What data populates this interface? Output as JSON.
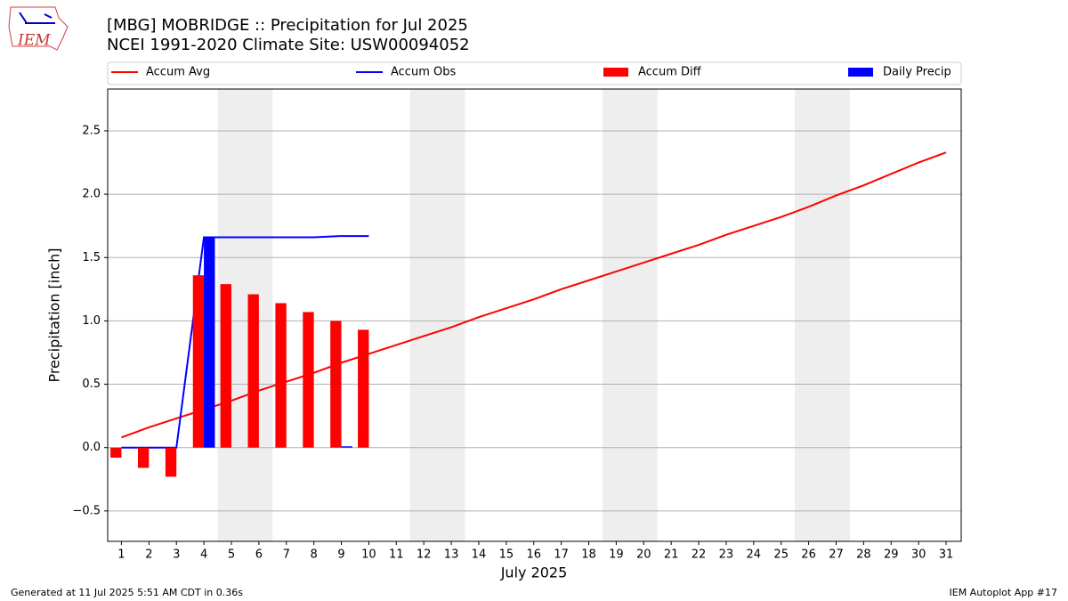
{
  "chart_data": {
    "type": "combo",
    "title": "[MBG] MOBRIDGE :: Precipitation for Jul 2025",
    "subtitle": "NCEI 1991-2020 Climate Site: USW00094052",
    "xlabel": "July 2025",
    "ylabel": "Precipitation [inch]",
    "x": [
      1,
      2,
      3,
      4,
      5,
      6,
      7,
      8,
      9,
      10,
      11,
      12,
      13,
      14,
      15,
      16,
      17,
      18,
      19,
      20,
      21,
      22,
      23,
      24,
      25,
      26,
      27,
      28,
      29,
      30,
      31
    ],
    "xlim": [
      0.5,
      31.55
    ],
    "xticks": [
      1,
      2,
      3,
      4,
      5,
      6,
      7,
      8,
      9,
      10,
      11,
      12,
      13,
      14,
      15,
      16,
      17,
      18,
      19,
      20,
      21,
      22,
      23,
      24,
      25,
      26,
      27,
      28,
      29,
      30,
      31
    ],
    "ylim": [
      -0.74,
      2.83
    ],
    "yticks": [
      {
        "value": -0.5,
        "label": "−0.5"
      },
      {
        "value": 0,
        "label": "0.0"
      },
      0.5,
      {
        "value": 1,
        "label": "1.0"
      },
      1.5,
      {
        "value": 2,
        "label": "2.0"
      },
      2.5
    ],
    "grid": true,
    "weekend_spans": [
      [
        4.5,
        6.5
      ],
      [
        11.5,
        13.5
      ],
      [
        18.5,
        20.5
      ],
      [
        25.5,
        27.5
      ]
    ],
    "series": [
      {
        "name": "Accum Avg",
        "type": "line",
        "color": "#ff0000",
        "values": [
          0.08,
          0.16,
          0.23,
          0.3,
          0.37,
          0.45,
          0.52,
          0.59,
          0.67,
          0.74,
          0.81,
          0.88,
          0.95,
          1.03,
          1.1,
          1.17,
          1.25,
          1.32,
          1.39,
          1.46,
          1.53,
          1.6,
          1.68,
          1.75,
          1.82,
          1.9,
          1.99,
          2.07,
          2.16,
          2.25,
          2.33
        ]
      },
      {
        "name": "Accum Obs",
        "type": "line",
        "color": "#0000ff",
        "values": [
          0,
          0,
          0,
          1.66,
          1.66,
          1.66,
          1.66,
          1.66,
          1.67,
          1.67,
          null,
          null,
          null,
          null,
          null,
          null,
          null,
          null,
          null,
          null,
          null,
          null,
          null,
          null,
          null,
          null,
          null,
          null,
          null,
          null,
          null
        ]
      },
      {
        "name": "Accum Diff",
        "type": "bar",
        "color": "#ff0000",
        "offset": -0.2,
        "values": [
          -0.08,
          -0.16,
          -0.23,
          1.36,
          1.29,
          1.21,
          1.14,
          1.07,
          1.0,
          0.93,
          null,
          null,
          null,
          null,
          null,
          null,
          null,
          null,
          null,
          null,
          null,
          null,
          null,
          null,
          null,
          null,
          null,
          null,
          null,
          null,
          null
        ]
      },
      {
        "name": "Daily Precip",
        "type": "bar",
        "color": "#0000ff",
        "offset": 0.2,
        "values": [
          0,
          0,
          0,
          1.66,
          0,
          0,
          0,
          0,
          0.01,
          0,
          null,
          null,
          null,
          null,
          null,
          null,
          null,
          null,
          null,
          null,
          null,
          null,
          null,
          null,
          null,
          null,
          null,
          null,
          null,
          null,
          null
        ]
      }
    ],
    "footer_left": "Generated at 11 Jul 2025 5:51 AM CDT in 0.36s",
    "footer_right": "IEM Autoplot App #17",
    "logo_text": "IEM"
  }
}
